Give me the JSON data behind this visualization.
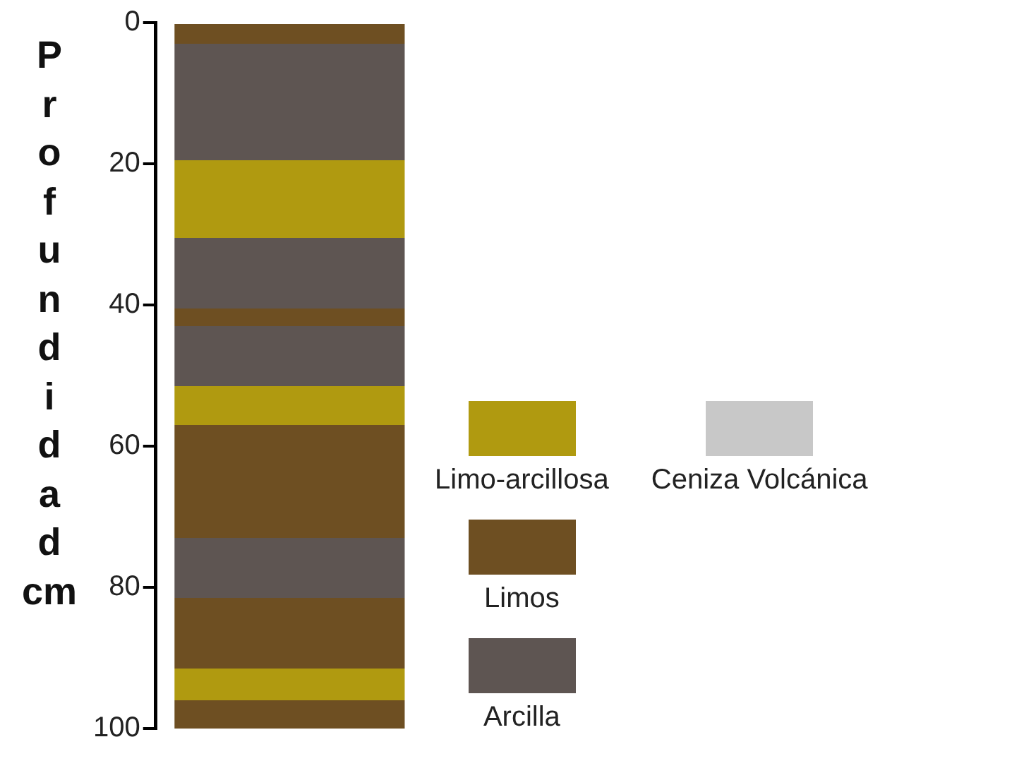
{
  "chart_data": {
    "type": "bar",
    "stacked": true,
    "ylabel": "Profundidad cm",
    "categories": [
      null
    ],
    "ylim": [
      100,
      0
    ],
    "yticks": [
      0,
      20,
      40,
      60,
      80,
      100
    ],
    "grid": false,
    "legend": "right",
    "series": [
      {
        "color": "#6e4f22",
        "values": [
          3
        ]
      },
      {
        "color": "#5e5552",
        "values": [
          16.5
        ]
      },
      {
        "name": "Limo-arcillosa",
        "color": "#b09a10",
        "values": [
          11
        ]
      },
      {
        "color": "#5e5552",
        "values": [
          10
        ]
      },
      {
        "name": "Limos",
        "color": "#6e4f22",
        "values": [
          2.5
        ]
      },
      {
        "name": "Arcilla",
        "color": "#5e5552",
        "values": [
          8.5
        ]
      },
      {
        "color": "#b09a10",
        "values": [
          5.5
        ]
      },
      {
        "color": "#6e4f22",
        "values": [
          16
        ]
      },
      {
        "color": "#5e5552",
        "values": [
          8.5
        ]
      },
      {
        "color": "#6e4f22",
        "values": [
          10
        ]
      },
      {
        "color": "#b09a10",
        "values": [
          4.5
        ]
      },
      {
        "color": "#6e4f22",
        "values": [
          4
        ]
      },
      {
        "name": "Ceniza Volcánica",
        "color": "#c8c8c8",
        "values": [
          null
        ]
      }
    ]
  }
}
